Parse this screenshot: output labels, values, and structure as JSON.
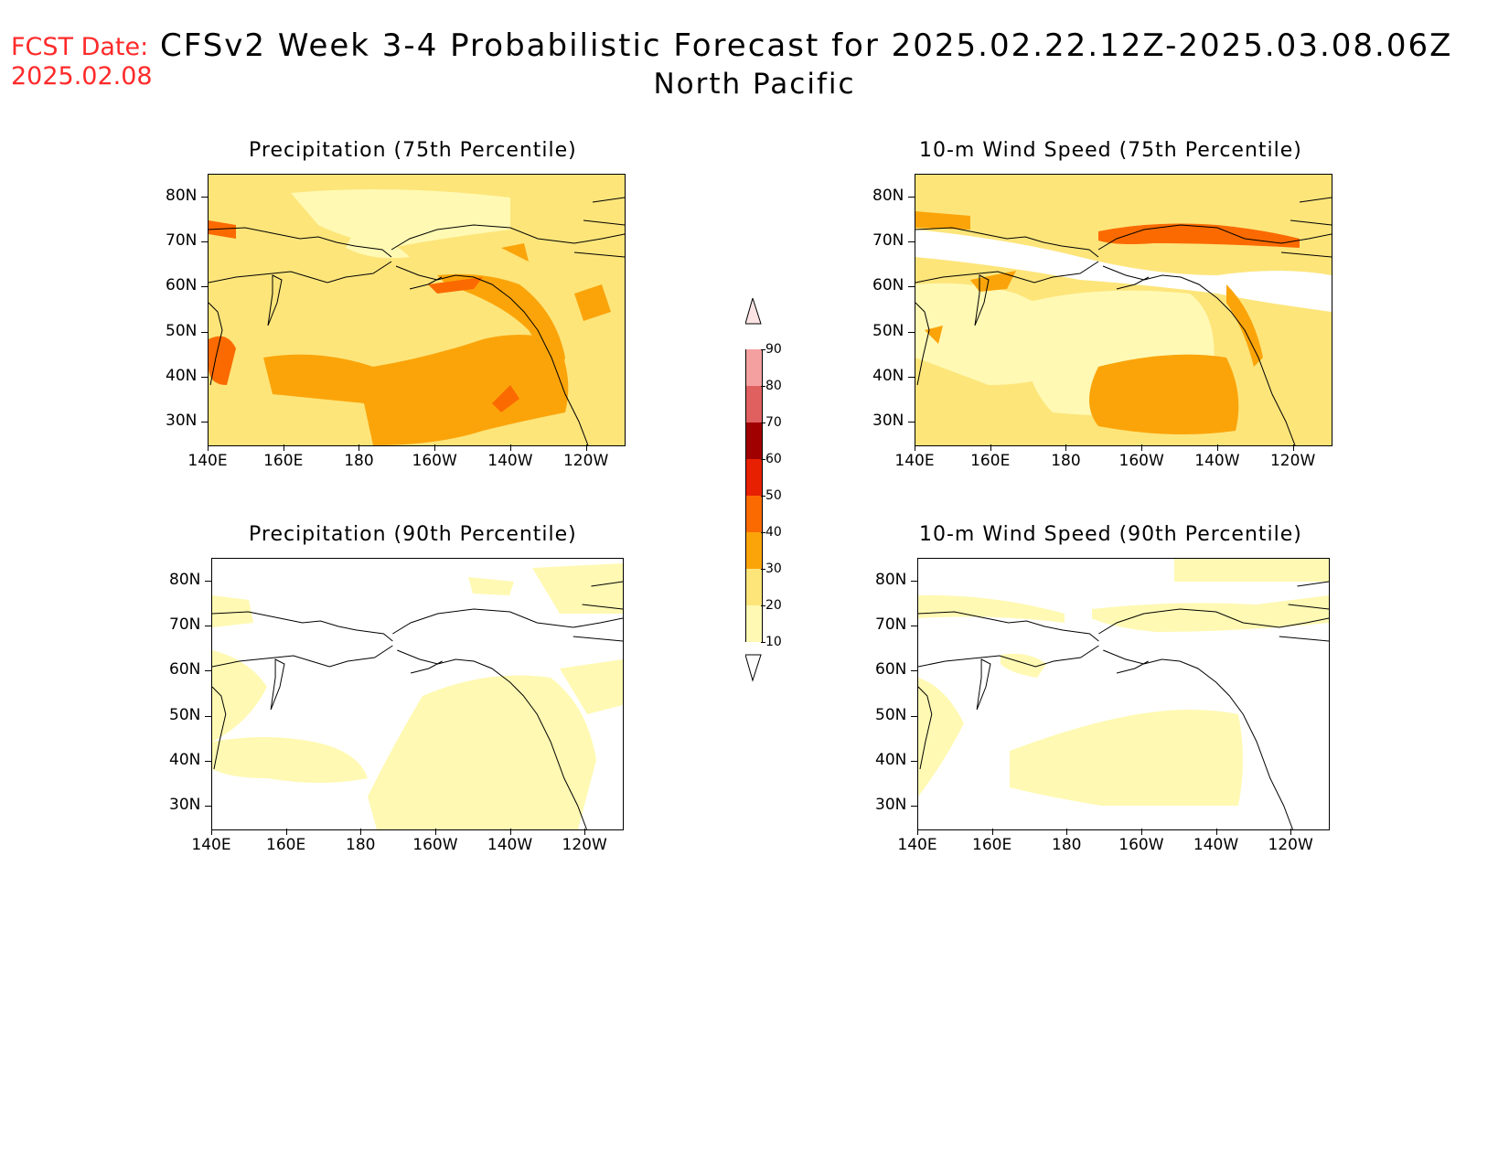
{
  "header": {
    "fcst_label": "FCST Date:",
    "fcst_date": "2025.02.08",
    "title_line1": "CFSv2 Week 3-4 Probabilistic Forecast for 2025.02.22.12Z-2025.03.08.06Z",
    "title_line2": "North Pacific"
  },
  "panels": [
    {
      "id": "precip75",
      "title": "Precipitation (75th Percentile)"
    },
    {
      "id": "wind75",
      "title": "10-m Wind Speed (75th Percentile)"
    },
    {
      "id": "precip90",
      "title": "Precipitation (90th Percentile)"
    },
    {
      "id": "wind90",
      "title": "10-m Wind Speed (90th Percentile)"
    }
  ],
  "lat_labels": [
    "80N",
    "70N",
    "60N",
    "50N",
    "40N",
    "30N"
  ],
  "lon_labels": [
    "140E",
    "160E",
    "180",
    "160W",
    "140W",
    "120W"
  ],
  "colorbar": {
    "levels": [
      "10",
      "20",
      "30",
      "40",
      "50",
      "60",
      "70",
      "80",
      "90"
    ],
    "colors": [
      "#fff9b3",
      "#fde57a",
      "#fba40a",
      "#fb6a00",
      "#e62000",
      "#a00000",
      "#e06060",
      "#f4a0a0",
      "#fde4e4"
    ]
  },
  "colors": {
    "white": "#ffffff",
    "pale": "#fff9b3",
    "light": "#fde57a",
    "orange": "#fba40a",
    "deep": "#fb6a00",
    "fcst_red": "#ff2a2a"
  }
}
